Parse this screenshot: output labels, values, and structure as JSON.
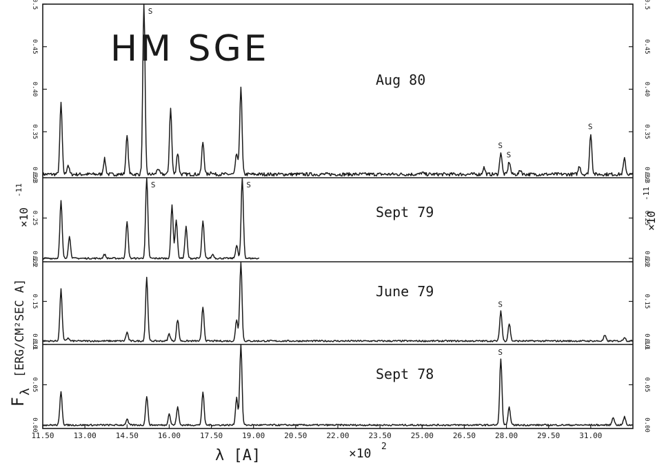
{
  "figure": {
    "object_label": "HM SGE",
    "ylabel_main": "F",
    "ylabel_sub": "λ",
    "ylabel_unit": "[ERG/CM²SEC A]",
    "xlabel": "λ [A]",
    "x_multiplier": "×10",
    "x_multiplier_exp": "2",
    "y_multiplier": "×10",
    "y_multiplier_exp": "-11",
    "line_marker": "S"
  },
  "chart_data": [
    {
      "type": "line",
      "name": "Aug 80",
      "x_range": [
        1150,
        3250
      ],
      "ylim": [
        0.3,
        0.5
      ],
      "y_ticks": [
        "0.30",
        "0.35",
        "0.40",
        "0.45",
        "0.5"
      ],
      "baseline": 0.3,
      "peaks": [
        {
          "x": 1215,
          "y": 0.384
        },
        {
          "x": 1240,
          "y": 0.311
        },
        {
          "x": 1370,
          "y": 0.318
        },
        {
          "x": 1450,
          "y": 0.345
        },
        {
          "x": 1510,
          "y": 0.5,
          "marker": "S"
        },
        {
          "x": 1560,
          "y": 0.307
        },
        {
          "x": 1605,
          "y": 0.377
        },
        {
          "x": 1630,
          "y": 0.325
        },
        {
          "x": 1720,
          "y": 0.338
        },
        {
          "x": 1750,
          "y": 0.303
        },
        {
          "x": 1840,
          "y": 0.324
        },
        {
          "x": 1855,
          "y": 0.403
        },
        {
          "x": 2500,
          "y": 0.302
        },
        {
          "x": 2720,
          "y": 0.308
        },
        {
          "x": 2780,
          "y": 0.326,
          "marker": "S"
        },
        {
          "x": 2810,
          "y": 0.315,
          "marker": "S"
        },
        {
          "x": 2850,
          "y": 0.305
        },
        {
          "x": 3060,
          "y": 0.31
        },
        {
          "x": 3100,
          "y": 0.348,
          "marker": "S"
        },
        {
          "x": 3220,
          "y": 0.318
        }
      ]
    },
    {
      "type": "line",
      "name": "Sept 79",
      "x_range": [
        1150,
        1920
      ],
      "ylim": [
        0.2,
        0.3
      ],
      "y_ticks": [
        "0.20",
        "0.25",
        "0.3"
      ],
      "baseline": 0.2,
      "peaks": [
        {
          "x": 1215,
          "y": 0.271
        },
        {
          "x": 1245,
          "y": 0.227
        },
        {
          "x": 1370,
          "y": 0.205
        },
        {
          "x": 1450,
          "y": 0.245
        },
        {
          "x": 1520,
          "y": 0.3,
          "marker": "S"
        },
        {
          "x": 1610,
          "y": 0.266
        },
        {
          "x": 1625,
          "y": 0.248
        },
        {
          "x": 1660,
          "y": 0.239
        },
        {
          "x": 1720,
          "y": 0.246
        },
        {
          "x": 1755,
          "y": 0.205
        },
        {
          "x": 1840,
          "y": 0.216
        },
        {
          "x": 1860,
          "y": 0.3,
          "marker": "S"
        }
      ]
    },
    {
      "type": "line",
      "name": "June 79",
      "x_range": [
        1150,
        3250
      ],
      "ylim": [
        0.1,
        0.2
      ],
      "y_ticks": [
        "0.10",
        "0.15",
        "0.2"
      ],
      "baseline": 0.1,
      "peaks": [
        {
          "x": 1215,
          "y": 0.165
        },
        {
          "x": 1240,
          "y": 0.104
        },
        {
          "x": 1450,
          "y": 0.111
        },
        {
          "x": 1520,
          "y": 0.18
        },
        {
          "x": 1600,
          "y": 0.109
        },
        {
          "x": 1630,
          "y": 0.127
        },
        {
          "x": 1720,
          "y": 0.143
        },
        {
          "x": 1840,
          "y": 0.127
        },
        {
          "x": 1855,
          "y": 0.2
        },
        {
          "x": 2780,
          "y": 0.138,
          "marker": "S"
        },
        {
          "x": 2810,
          "y": 0.122
        },
        {
          "x": 3150,
          "y": 0.107
        },
        {
          "x": 3220,
          "y": 0.105
        }
      ]
    },
    {
      "type": "line",
      "name": "Sept 78",
      "x_range": [
        1150,
        3250
      ],
      "ylim": [
        0.0,
        0.1
      ],
      "y_ticks": [
        "0.00",
        "0.05",
        "0.1"
      ],
      "baseline": 0.0,
      "peaks": [
        {
          "x": 1215,
          "y": 0.042
        },
        {
          "x": 1450,
          "y": 0.007
        },
        {
          "x": 1520,
          "y": 0.036
        },
        {
          "x": 1600,
          "y": 0.014
        },
        {
          "x": 1630,
          "y": 0.022
        },
        {
          "x": 1720,
          "y": 0.04
        },
        {
          "x": 1840,
          "y": 0.034
        },
        {
          "x": 1855,
          "y": 0.1
        },
        {
          "x": 2780,
          "y": 0.082,
          "marker": "S"
        },
        {
          "x": 2810,
          "y": 0.022
        },
        {
          "x": 3180,
          "y": 0.01
        },
        {
          "x": 3220,
          "y": 0.01
        }
      ]
    }
  ],
  "x_axis": {
    "range": [
      1150,
      3250
    ],
    "ticks": [
      1150,
      1300,
      1450,
      1600,
      1750,
      1900,
      2050,
      2200,
      2350,
      2500,
      2650,
      2800,
      2950,
      3100
    ],
    "tick_labels": [
      "11.50",
      "13.00",
      "14.50",
      "16.00",
      "17.50",
      "19.00",
      "20.50",
      "22.00",
      "23.50",
      "25.00",
      "26.50",
      "28.00",
      "29.50",
      "31.00"
    ]
  }
}
